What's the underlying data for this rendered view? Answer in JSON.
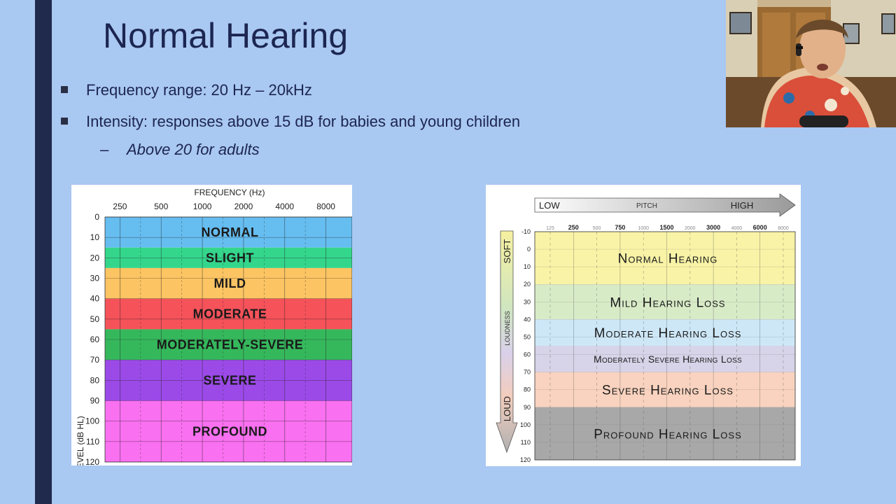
{
  "slide": {
    "title": "Normal Hearing",
    "bullets": [
      {
        "text": "Frequency range: 20 Hz – 20kHz"
      },
      {
        "text": "Intensity: responses above 15 dB for babies and young children"
      }
    ],
    "sub_bullet": {
      "dash": "–",
      "text": "Above 20 for adults"
    }
  },
  "colors": {
    "slide_background": "#a9c8f2",
    "sidebar": "#1f2a4d",
    "title_text": "#1c2650"
  },
  "chart_data": [
    {
      "type": "table",
      "title": "FREQUENCY (Hz)",
      "ylabel": "HEARING LEVEL (dB HL)",
      "x_ticks": [
        "250",
        "500",
        "1000",
        "2000",
        "4000",
        "8000"
      ],
      "y_ticks": [
        "0",
        "10",
        "20",
        "30",
        "40",
        "50",
        "60",
        "70",
        "80",
        "90",
        "100",
        "110",
        "120"
      ],
      "ylim": [
        0,
        120
      ],
      "bands": [
        {
          "label": "NORMAL",
          "from": 0,
          "to": 15,
          "color": "#66bdf0"
        },
        {
          "label": "SLIGHT",
          "from": 15,
          "to": 25,
          "color": "#34d68c"
        },
        {
          "label": "MILD",
          "from": 25,
          "to": 40,
          "color": "#fcc463"
        },
        {
          "label": "MODERATE",
          "from": 40,
          "to": 55,
          "color": "#f6525a"
        },
        {
          "label": "MODERATELY-SEVERE",
          "from": 55,
          "to": 70,
          "color": "#35b85c"
        },
        {
          "label": "SEVERE",
          "from": 70,
          "to": 90,
          "color": "#9b4ae8"
        },
        {
          "label": "PROFOUND",
          "from": 90,
          "to": 120,
          "color": "#f970f0"
        }
      ]
    },
    {
      "type": "table",
      "pitch_low": "LOW",
      "pitch_label": "PITCH",
      "pitch_high": "HIGH",
      "loudness_soft": "SOFT",
      "loudness_label": "LOUDNESS",
      "loudness_loud": "LOUD",
      "x_ticks": [
        "125",
        "250",
        "500",
        "750",
        "1000",
        "1500",
        "2000",
        "3000",
        "4000",
        "6000",
        "8000"
      ],
      "y_ticks": [
        "-10",
        "0",
        "10",
        "20",
        "30",
        "40",
        "50",
        "60",
        "70",
        "80",
        "90",
        "100",
        "110",
        "120"
      ],
      "ylim": [
        -10,
        120
      ],
      "bands": [
        {
          "label": "Normal Hearing",
          "from": -10,
          "to": 20,
          "color": "#f8f3a6"
        },
        {
          "label": "Mild Hearing Loss",
          "from": 20,
          "to": 40,
          "color": "#d8ebc7"
        },
        {
          "label": "Moderate Hearing Loss",
          "from": 40,
          "to": 55,
          "color": "#cde7f7"
        },
        {
          "label": "Moderately Severe Hearing Loss",
          "from": 55,
          "to": 70,
          "color": "#d7d3e8"
        },
        {
          "label": "Severe Hearing Loss",
          "from": 70,
          "to": 90,
          "color": "#f9d3bf"
        },
        {
          "label": "Profound Hearing Loss",
          "from": 90,
          "to": 120,
          "color": "#a8a8a8"
        }
      ]
    }
  ],
  "webcam": {
    "description_icon": "presenter-video-icon"
  }
}
